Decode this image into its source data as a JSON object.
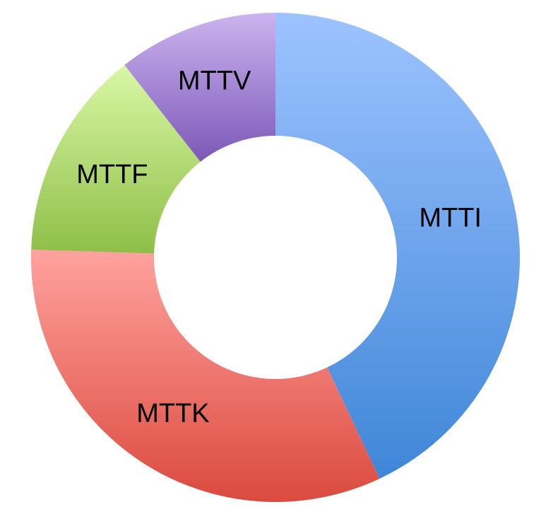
{
  "chart_data": {
    "type": "pie",
    "donut": true,
    "title": "",
    "legend": "none",
    "start_angle_deg": 0,
    "direction": "clockwise",
    "slices": [
      {
        "label": "MTTI",
        "value": 43.0,
        "color_top": "#9dc3ff",
        "color_bottom": "#3f86d8"
      },
      {
        "label": "MTTK",
        "value": 32.5,
        "color_top": "#ffa29e",
        "color_bottom": "#db4a3e"
      },
      {
        "label": "MTTF",
        "value": 13.9,
        "color_top": "#d9f7a6",
        "color_bottom": "#8fbf48"
      },
      {
        "label": "MTTV",
        "value": 10.6,
        "color_top": "#cbb4ef",
        "color_bottom": "#7d58b8"
      }
    ]
  }
}
